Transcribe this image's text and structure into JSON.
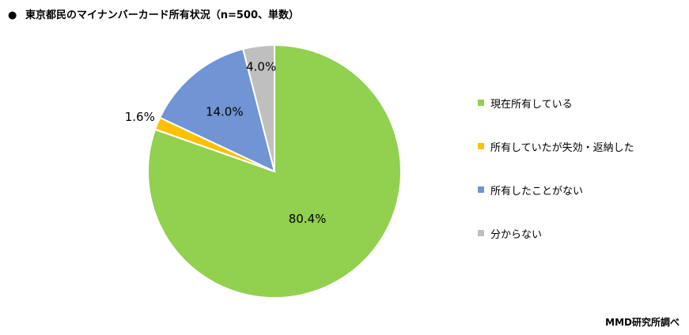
{
  "title": "東京都民のマイナンバーカード所有状況（n=500、単数）",
  "title_bullet": "●",
  "source": "MMD研究所調べ",
  "chart_data": {
    "type": "pie",
    "title": "東京都民のマイナンバーカード所有状況（n=500、単数）",
    "legend_position": "right",
    "slices": [
      {
        "label": "現在所有している",
        "value": 80.4,
        "value_label": "80.4%",
        "color": "#92d050"
      },
      {
        "label": "所有していたが失効・返納した",
        "value": 1.6,
        "value_label": "1.6%",
        "color": "#ffc000"
      },
      {
        "label": "所有したことがない",
        "value": 14.0,
        "value_label": "14.0%",
        "color": "#7094d4"
      },
      {
        "label": "分からない",
        "value": 4.0,
        "value_label": "4.0%",
        "color": "#bfbfbf"
      }
    ]
  }
}
